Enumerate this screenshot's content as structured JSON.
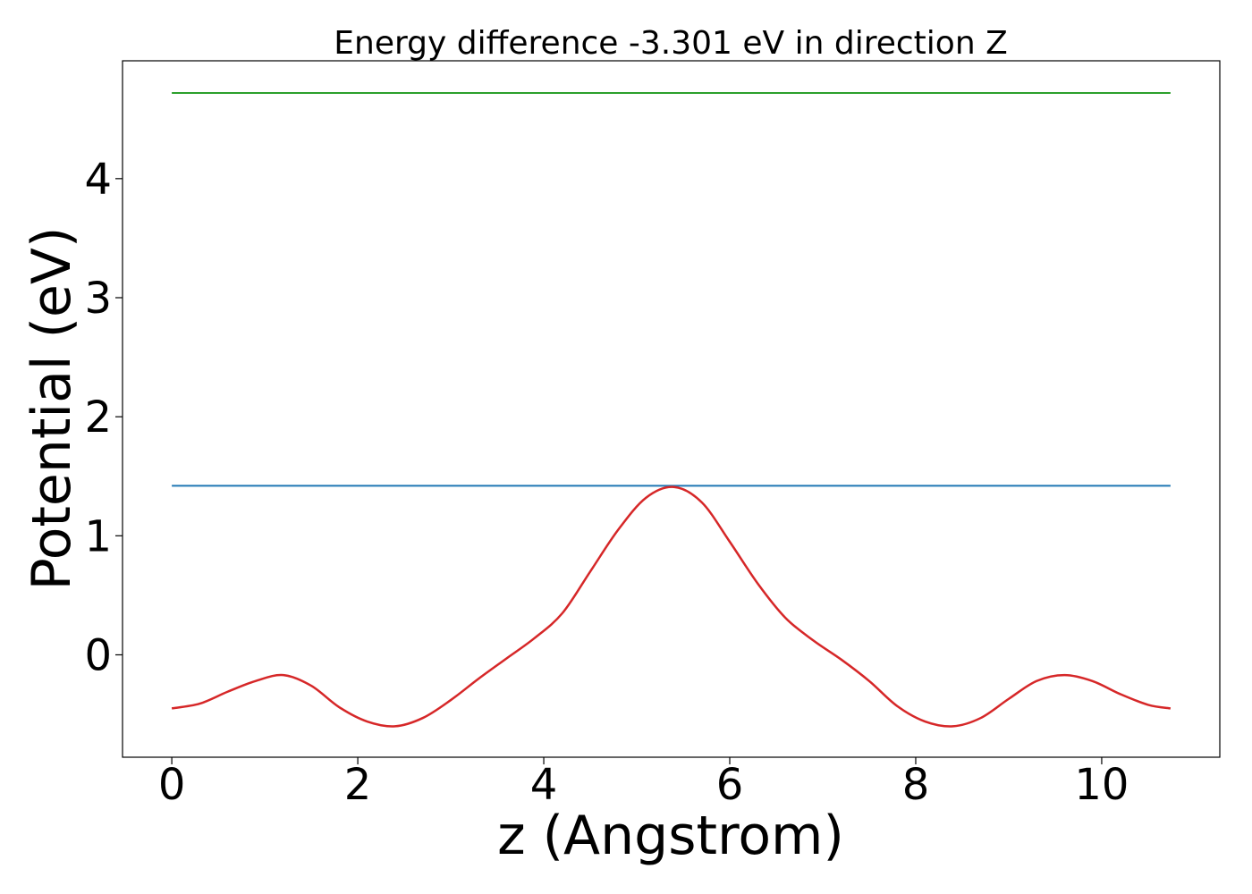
{
  "chart_data": {
    "type": "line",
    "title": "Energy difference -3.301 eV in direction Z",
    "xlabel": "z (Angstrom)",
    "ylabel": "Potential (eV)",
    "xlim": [
      -0.53,
      11.27
    ],
    "ylim": [
      -0.86,
      4.99
    ],
    "xticks": [
      0,
      2,
      4,
      6,
      8,
      10
    ],
    "yticks": [
      0,
      1,
      2,
      3,
      4
    ],
    "grid": false,
    "series": [
      {
        "color": "#2ca02c",
        "x": [
          0,
          10.74
        ],
        "y": [
          4.72,
          4.72
        ]
      },
      {
        "color": "#1f77b4",
        "x": [
          0,
          10.74
        ],
        "y": [
          1.42,
          1.42
        ]
      },
      {
        "color": "#d62728",
        "x": [
          0.0,
          0.3,
          0.6,
          0.9,
          1.2,
          1.5,
          1.8,
          2.1,
          2.4,
          2.7,
          3.0,
          3.3,
          3.6,
          3.9,
          4.2,
          4.5,
          4.8,
          5.1,
          5.4,
          5.7,
          6.0,
          6.3,
          6.6,
          6.9,
          7.2,
          7.5,
          7.8,
          8.1,
          8.4,
          8.7,
          9.0,
          9.3,
          9.6,
          9.9,
          10.2,
          10.5,
          10.74
        ],
        "y": [
          -0.45,
          -0.41,
          -0.31,
          -0.22,
          -0.17,
          -0.26,
          -0.44,
          -0.56,
          -0.6,
          -0.53,
          -0.38,
          -0.2,
          -0.03,
          0.14,
          0.35,
          0.7,
          1.05,
          1.32,
          1.41,
          1.28,
          0.95,
          0.6,
          0.31,
          0.12,
          -0.04,
          -0.22,
          -0.43,
          -0.56,
          -0.6,
          -0.53,
          -0.37,
          -0.22,
          -0.17,
          -0.22,
          -0.33,
          -0.42,
          -0.45
        ]
      }
    ]
  }
}
